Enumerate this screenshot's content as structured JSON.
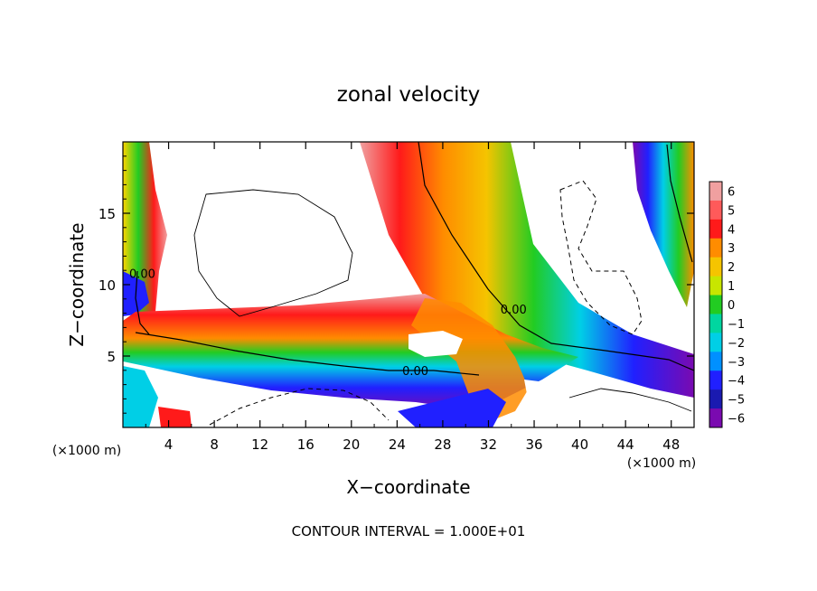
{
  "chart_data": {
    "type": "heatmap",
    "title": "zonal velocity",
    "xlabel": "X−coordinate",
    "ylabel": "Z−coordinate",
    "x_unit_left": "(×1000 m)",
    "x_unit_right": "(×1000 m)",
    "footer": "CONTOUR INTERVAL = 1.000E+01",
    "xlim": [
      0,
      50
    ],
    "ylim": [
      0,
      20
    ],
    "x_ticks": [
      4,
      8,
      12,
      16,
      20,
      24,
      28,
      32,
      36,
      40,
      44,
      48
    ],
    "x_tick_labels": [
      "4",
      "8",
      "12",
      "16",
      "20",
      "24",
      "28",
      "32",
      "36",
      "40",
      "44",
      "48"
    ],
    "y_ticks": [
      5,
      10,
      15
    ],
    "y_tick_labels": [
      "5",
      "10",
      "15"
    ],
    "colorbar": {
      "levels": [
        6,
        5,
        4,
        3,
        2,
        1,
        0,
        -1,
        -2,
        -3,
        -4,
        -5,
        -6
      ],
      "labels": [
        "6",
        "5",
        "4",
        "3",
        "2",
        "1",
        "0",
        "−1",
        "−2",
        "−3",
        "−4",
        "−5",
        "−6"
      ],
      "colors": [
        "#f0a0a0",
        "#ff5a5a",
        "#ff1a1a",
        "#ff8c00",
        "#f5c400",
        "#c8e600",
        "#22cc22",
        "#00d6a0",
        "#00cfe6",
        "#0090ff",
        "#2020ff",
        "#1a1ab0",
        "#7a0ab0"
      ],
      "saturation": "white"
    },
    "contour_labels": [
      {
        "text": "0.00",
        "x": 1.7,
        "z": 10.8
      },
      {
        "text": "0.00",
        "x": 34.2,
        "z": 8.3
      },
      {
        "text": "0.00",
        "x": 25.6,
        "z": 4.0
      }
    ],
    "contour_interval": 10
  }
}
